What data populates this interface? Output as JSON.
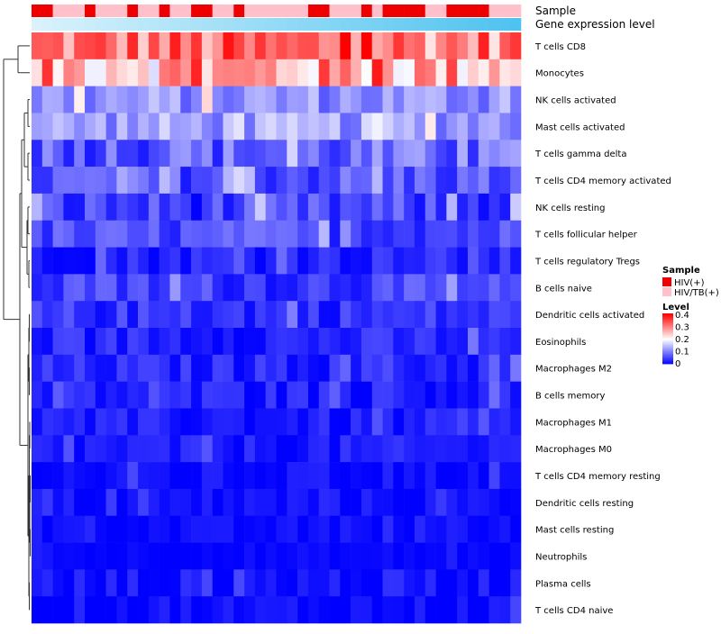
{
  "chart_data": {
    "type": "heatmap",
    "title": "",
    "annotations": [
      {
        "name": "Sample",
        "kind": "categorical"
      },
      {
        "name": "Gene expression level",
        "kind": "gradient",
        "colors": [
          "#d9f2fb",
          "#4fc3ef"
        ]
      }
    ],
    "rows": [
      "T cells CD8",
      "Monocytes",
      "NK cells activated",
      "Mast cells activated",
      "T cells gamma delta",
      "T cells CD4 memory activated",
      "NK cells resting",
      "T cells follicular helper",
      "T cells regulatory  Tregs",
      "B cells naive",
      "Dendritic cells activated",
      "Eosinophils",
      "Macrophages M2",
      "B cells memory",
      "Macrophages M1",
      "Macrophages M0",
      "T cells CD4 memory resting",
      "Dendritic cells resting",
      "Mast cells resting",
      "Neutrophils",
      "Plasma cells",
      "T cells CD4 naive"
    ],
    "n_columns": 46,
    "sample_groups": "RRPPPRPPPRPPRPPRRPPRPPPPPPRRPPPRPRRRRPPRRRRPPP",
    "row_means": [
      0.32,
      0.28,
      0.12,
      0.13,
      0.08,
      0.07,
      0.05,
      0.06,
      0.03,
      0.05,
      0.04,
      0.03,
      0.03,
      0.025,
      0.02,
      0.02,
      0.01,
      0.012,
      0.008,
      0.005,
      0.012,
      0.008
    ],
    "row_spread": [
      0.09,
      0.1,
      0.05,
      0.05,
      0.06,
      0.05,
      0.05,
      0.04,
      0.03,
      0.04,
      0.035,
      0.03,
      0.03,
      0.03,
      0.025,
      0.025,
      0.02,
      0.02,
      0.015,
      0.01,
      0.03,
      0.025
    ],
    "legend": {
      "sample_title": "Sample",
      "sample_entries": [
        {
          "label": "HIV(+)",
          "color": "#ee0000"
        },
        {
          "label": "HIV/TB(+)",
          "color": "#ffbfcb"
        }
      ],
      "level_title": "Level",
      "level_ticks": [
        "0.4",
        "0.3",
        "0.2",
        "0.1",
        "0"
      ],
      "level_range": [
        0,
        0.42
      ],
      "level_colors": [
        "#0000ff",
        "#ffffff",
        "#ff0000"
      ]
    }
  }
}
